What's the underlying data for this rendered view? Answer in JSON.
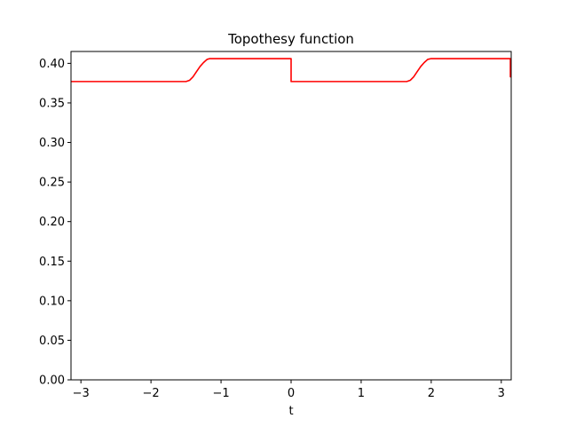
{
  "chart_data": {
    "type": "line",
    "title": "Topothesy function",
    "xlabel": "t",
    "ylabel": "",
    "xlim": [
      -3.14159,
      3.14159
    ],
    "ylim": [
      0.0,
      0.415
    ],
    "xticks": [
      -3,
      -2,
      -1,
      0,
      1,
      2,
      3
    ],
    "xtick_labels": [
      "−3",
      "−2",
      "−1",
      "0",
      "1",
      "2",
      "3"
    ],
    "yticks": [
      0.0,
      0.05,
      0.1,
      0.15,
      0.2,
      0.25,
      0.3,
      0.35,
      0.4
    ],
    "ytick_labels": [
      "0.00",
      "0.05",
      "0.10",
      "0.15",
      "0.20",
      "0.25",
      "0.30",
      "0.35",
      "0.40"
    ],
    "grid": false,
    "legend": "none",
    "series": [
      {
        "color": "#ff0000",
        "x": [
          -3.14159,
          -1.5,
          -1.45,
          -1.4,
          -1.35,
          -1.3,
          -1.25,
          -1.2,
          -1.16,
          0.0,
          0.0,
          1.65,
          1.7,
          1.75,
          1.8,
          1.85,
          1.9,
          1.95,
          2.0,
          3.13,
          3.13,
          3.14159
        ],
        "y": [
          0.377,
          0.377,
          0.3785,
          0.383,
          0.3895,
          0.396,
          0.401,
          0.405,
          0.406,
          0.406,
          0.377,
          0.377,
          0.3785,
          0.383,
          0.3895,
          0.396,
          0.401,
          0.405,
          0.406,
          0.406,
          0.383,
          0.383
        ]
      }
    ]
  }
}
